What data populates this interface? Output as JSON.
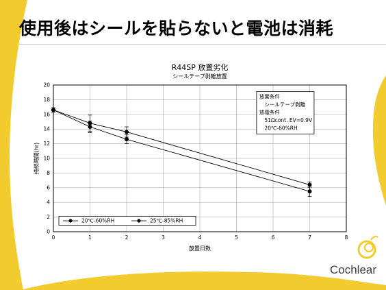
{
  "slide": {
    "title": "使用後はシールを貼らないと電池は消耗",
    "brand": "Cochlear",
    "accent_color": "#f2cc2e"
  },
  "chart_data": {
    "type": "line",
    "title": "R44SP 放置劣化",
    "subtitle": "シールテープ剥離放置",
    "xlabel": "放置日数",
    "ylabel": "持続時間(hr)",
    "xlim": [
      0,
      8
    ],
    "ylim": [
      0,
      20
    ],
    "xticks": [
      "0",
      "1",
      "2",
      "3",
      "4",
      "5",
      "6",
      "7",
      "8"
    ],
    "yticks": [
      "0",
      "2",
      "4",
      "6",
      "8",
      "10",
      "12",
      "14",
      "16",
      "18",
      "20"
    ],
    "grid": true,
    "series": [
      {
        "name": "20℃-60%RH",
        "x": [
          0,
          1,
          2,
          7
        ],
        "y": [
          16.6,
          14.8,
          13.6,
          6.4
        ],
        "err": [
          0.3,
          1.1,
          0.7,
          0.4
        ]
      },
      {
        "name": "25℃-85%RH",
        "x": [
          0,
          1,
          2,
          7
        ],
        "y": [
          16.6,
          14.3,
          12.6,
          5.5
        ],
        "err": [
          0.3,
          0.8,
          0.6,
          0.7
        ]
      }
    ],
    "legend_position": "bottom-left",
    "annotation_lines": [
      "放置条件",
      "　シールテープ剥離",
      "放電条件",
      "　51Ωcont.  EV=0.9V",
      "　20℃-60%RH"
    ]
  }
}
